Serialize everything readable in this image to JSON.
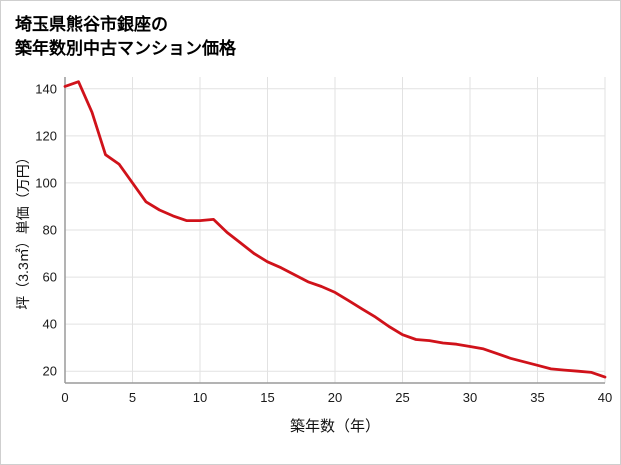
{
  "header": {
    "title_line1": "埼玉県熊谷市銀座の",
    "title_line2": "築年数別中古マンション価格"
  },
  "chart_data": {
    "type": "line",
    "title": "埼玉県熊谷市銀座の築年数別中古マンション価格",
    "xlabel": "築年数（年）",
    "ylabel": "坪（3.3㎡）単価（万円）",
    "x": [
      0,
      1,
      2,
      3,
      4,
      5,
      6,
      7,
      8,
      9,
      10,
      11,
      12,
      13,
      14,
      15,
      16,
      17,
      18,
      19,
      20,
      21,
      22,
      23,
      24,
      25,
      26,
      27,
      28,
      29,
      30,
      31,
      32,
      33,
      34,
      35,
      36,
      37,
      38,
      39,
      40
    ],
    "values": [
      141,
      143,
      130,
      112,
      108,
      100,
      92,
      88.5,
      86,
      84,
      84,
      84.5,
      79,
      74.5,
      70,
      66.5,
      64,
      61,
      58,
      56,
      53.5,
      50,
      46.5,
      43,
      39,
      35.5,
      33.5,
      33,
      32,
      31.5,
      30.5,
      29.5,
      27.5,
      25.5,
      24,
      22.5,
      21,
      20.5,
      20,
      19.5,
      17.5
    ],
    "xlim": [
      0,
      40
    ],
    "ylim": [
      15,
      145
    ],
    "xticks": [
      0,
      5,
      10,
      15,
      20,
      25,
      30,
      35,
      40
    ],
    "yticks": [
      20,
      40,
      60,
      80,
      100,
      120,
      140
    ],
    "grid": true,
    "legend": "none",
    "colors": {
      "line": "#d0121a",
      "grid": "#e2e2e2",
      "axis": "#9a9a9a",
      "tick_text": "#1a1a1a",
      "label_text": "#111111"
    }
  }
}
